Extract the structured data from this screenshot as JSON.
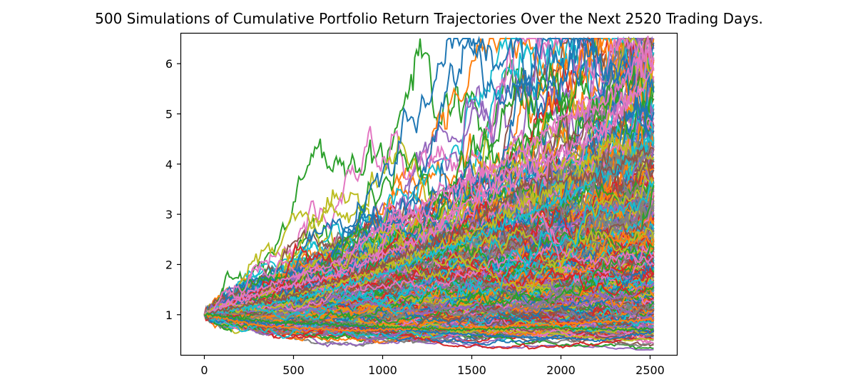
{
  "chart_data": {
    "type": "line",
    "title": "500 Simulations of Cumulative Portfolio Return Trajectories Over the Next 2520 Trading Days.",
    "xlabel": "",
    "ylabel": "",
    "xlim": [
      -130,
      2650
    ],
    "ylim": [
      0.2,
      6.6
    ],
    "xticks": [
      0,
      500,
      1000,
      1500,
      2000,
      2500
    ],
    "yticks": [
      1,
      2,
      3,
      4,
      5,
      6
    ],
    "grid": false,
    "legend": "none",
    "num_simulations": 500,
    "num_trading_days": 2520,
    "start_value": 1.0,
    "colors": [
      "#1f77b4",
      "#ff7f0e",
      "#2ca02c",
      "#d62728",
      "#9467bd",
      "#8c564b",
      "#e377c2",
      "#7f7f7f",
      "#bcbd22",
      "#17becf"
    ],
    "highlighted_series": [
      {
        "name": "",
        "color": "#e377c2",
        "x": [
          0,
          250,
          500,
          750,
          1000,
          1250,
          1500,
          1750,
          2000,
          2250,
          2480,
          2520
        ],
        "y": [
          1.0,
          1.45,
          1.75,
          2.05,
          2.75,
          3.25,
          3.7,
          4.15,
          4.9,
          5.2,
          6.3,
          6.05
        ]
      },
      {
        "name": "",
        "color": "#e377c2",
        "x": [
          0,
          250,
          500,
          750,
          1000,
          1250,
          1500,
          1750,
          2000,
          2250,
          2450,
          2520
        ],
        "y": [
          1.0,
          1.35,
          1.6,
          1.8,
          2.2,
          2.6,
          3.3,
          3.85,
          4.2,
          4.7,
          5.5,
          5.9
        ]
      },
      {
        "name": "",
        "color": "#bcbd22",
        "x": [
          0,
          500,
          1000,
          1500,
          2000,
          2300,
          2520
        ],
        "y": [
          1.0,
          1.4,
          1.9,
          2.6,
          3.6,
          4.5,
          4.1
        ]
      },
      {
        "name": "",
        "color": "#17becf",
        "x": [
          0,
          500,
          1000,
          1500,
          2000,
          2300,
          2520
        ],
        "y": [
          1.0,
          1.3,
          1.8,
          2.5,
          3.3,
          3.9,
          4.45
        ]
      },
      {
        "name": "",
        "color": "#8c564b",
        "x": [
          0,
          500,
          1000,
          1500,
          1800,
          2200,
          2520
        ],
        "y": [
          1.0,
          1.4,
          2.0,
          2.8,
          3.6,
          3.8,
          4.3
        ]
      },
      {
        "name": "",
        "color": "#1f77b4",
        "x": [
          0,
          300,
          700,
          1000,
          1500,
          1800,
          2100,
          2200,
          2400,
          2520
        ],
        "y": [
          1.0,
          0.85,
          0.8,
          0.72,
          0.6,
          0.55,
          0.52,
          0.48,
          0.6,
          0.65
        ]
      },
      {
        "name": "",
        "color": "#ff7f0e",
        "x": [
          0,
          300,
          800,
          1200,
          1600,
          2000,
          2520
        ],
        "y": [
          1.0,
          0.78,
          0.68,
          0.72,
          0.75,
          0.82,
          0.9
        ]
      },
      {
        "name": "",
        "color": "#2ca02c",
        "x": [
          0,
          400,
          900,
          1400,
          1900,
          2300,
          2520
        ],
        "y": [
          1.0,
          0.85,
          0.78,
          0.7,
          0.75,
          0.7,
          0.72
        ]
      }
    ]
  }
}
